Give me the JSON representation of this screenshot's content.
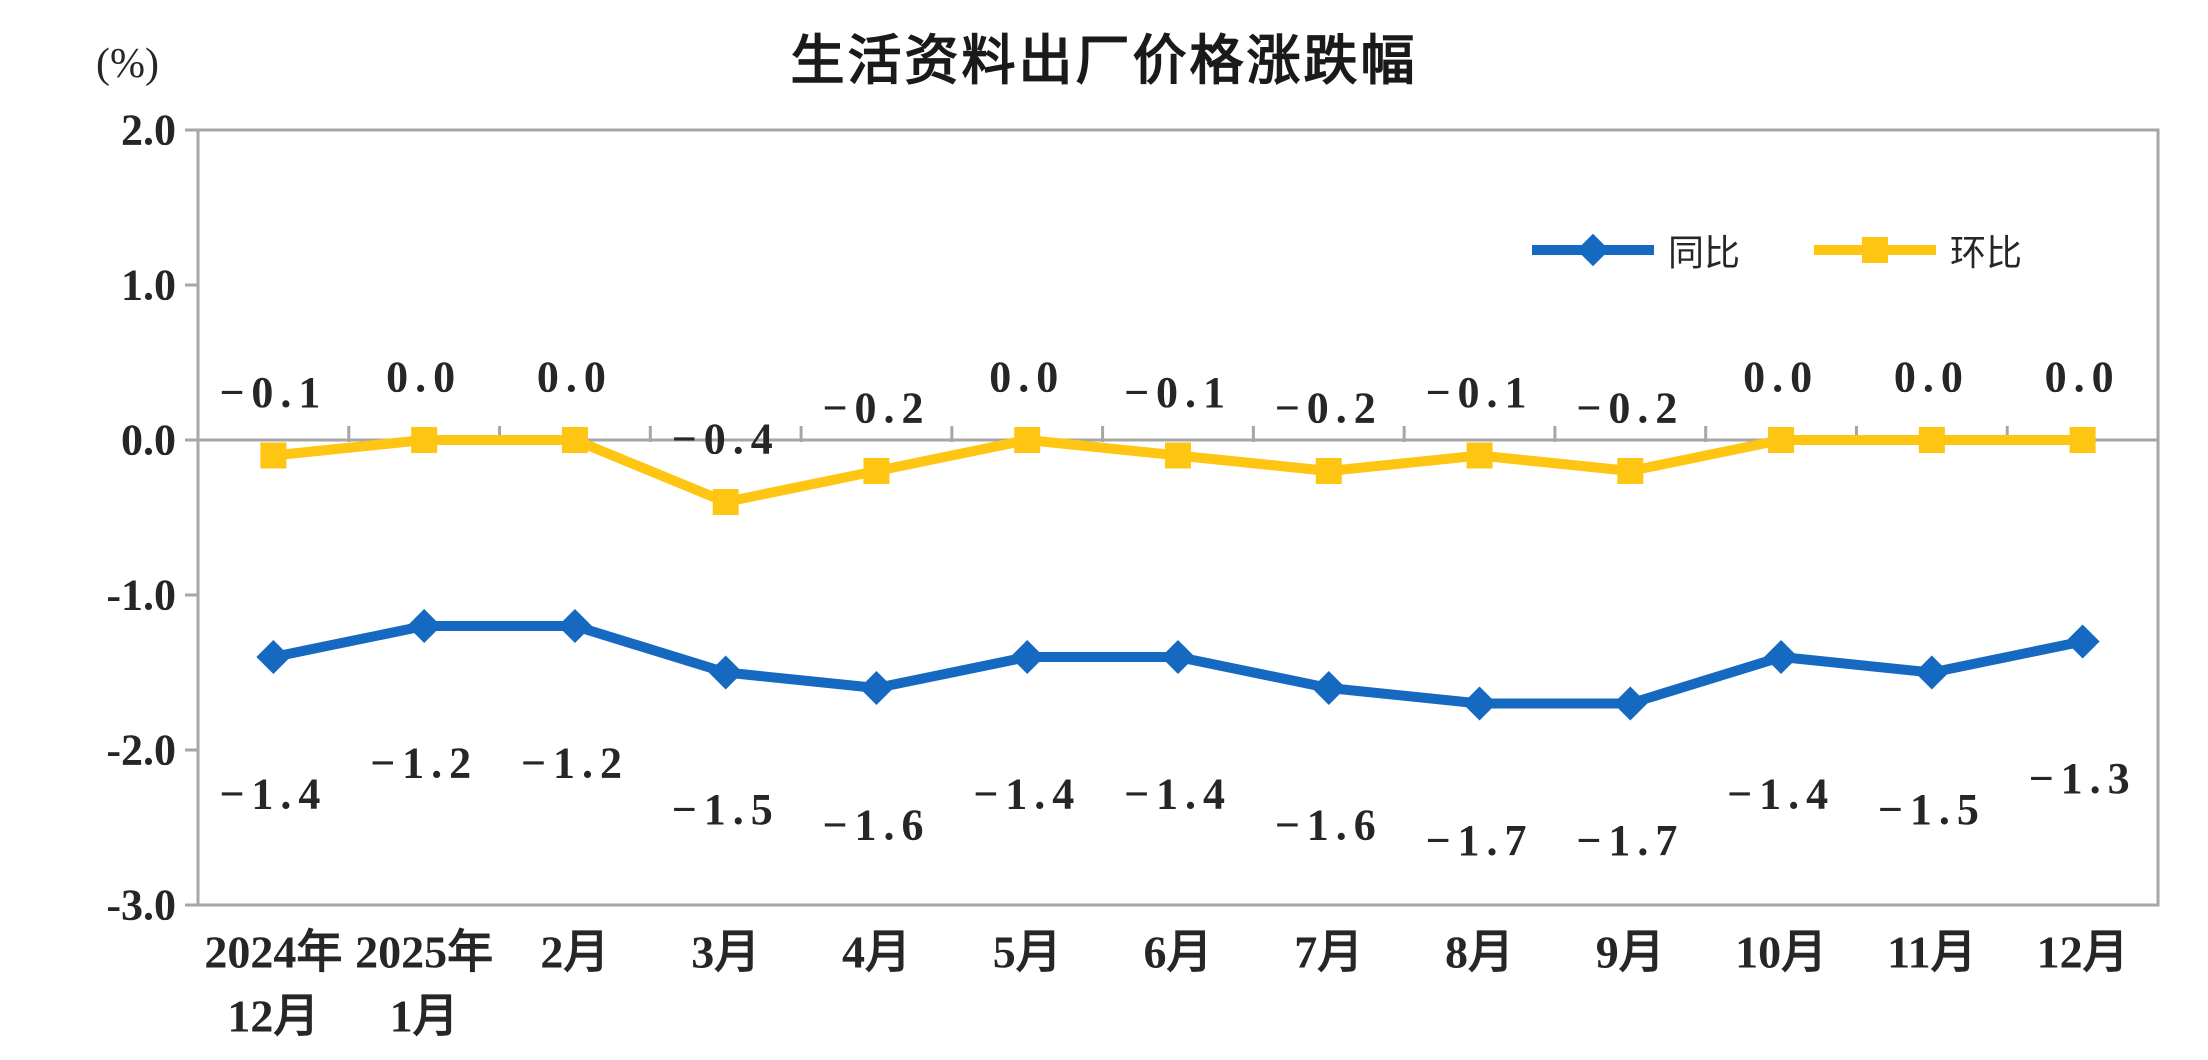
{
  "chart_data": {
    "type": "line",
    "title": "生活资料出厂价格涨跌幅",
    "unit": "(%)",
    "categories": [
      [
        "2024年",
        "12月"
      ],
      [
        "2025年",
        "1月"
      ],
      [
        "2月"
      ],
      [
        "3月"
      ],
      [
        "4月"
      ],
      [
        "5月"
      ],
      [
        "6月"
      ],
      [
        "7月"
      ],
      [
        "8月"
      ],
      [
        "9月"
      ],
      [
        "10月"
      ],
      [
        "11月"
      ],
      [
        "12月"
      ]
    ],
    "series": [
      {
        "name": "同比",
        "color": "#1669C1",
        "marker": "diamond",
        "label_position": "below",
        "values": [
          -1.4,
          -1.2,
          -1.2,
          -1.5,
          -1.6,
          -1.4,
          -1.4,
          -1.6,
          -1.7,
          -1.7,
          -1.4,
          -1.5,
          -1.3
        ]
      },
      {
        "name": "环比",
        "color": "#FFC513",
        "marker": "square",
        "label_position": "above",
        "values": [
          -0.1,
          0.0,
          0.0,
          -0.4,
          -0.2,
          0.0,
          -0.1,
          -0.2,
          -0.1,
          -0.2,
          0.0,
          0.0,
          0.0
        ]
      }
    ],
    "ylim": [
      -3.0,
      2.0
    ],
    "yticks": [
      2.0,
      1.0,
      0.0,
      -1.0,
      -2.0,
      -3.0
    ],
    "grid": "zero-line-only",
    "legend_position": "top-right-inside",
    "colors": {
      "axis": "#A6A6A6",
      "text": "#262626",
      "title": "#1a1a1a"
    }
  }
}
